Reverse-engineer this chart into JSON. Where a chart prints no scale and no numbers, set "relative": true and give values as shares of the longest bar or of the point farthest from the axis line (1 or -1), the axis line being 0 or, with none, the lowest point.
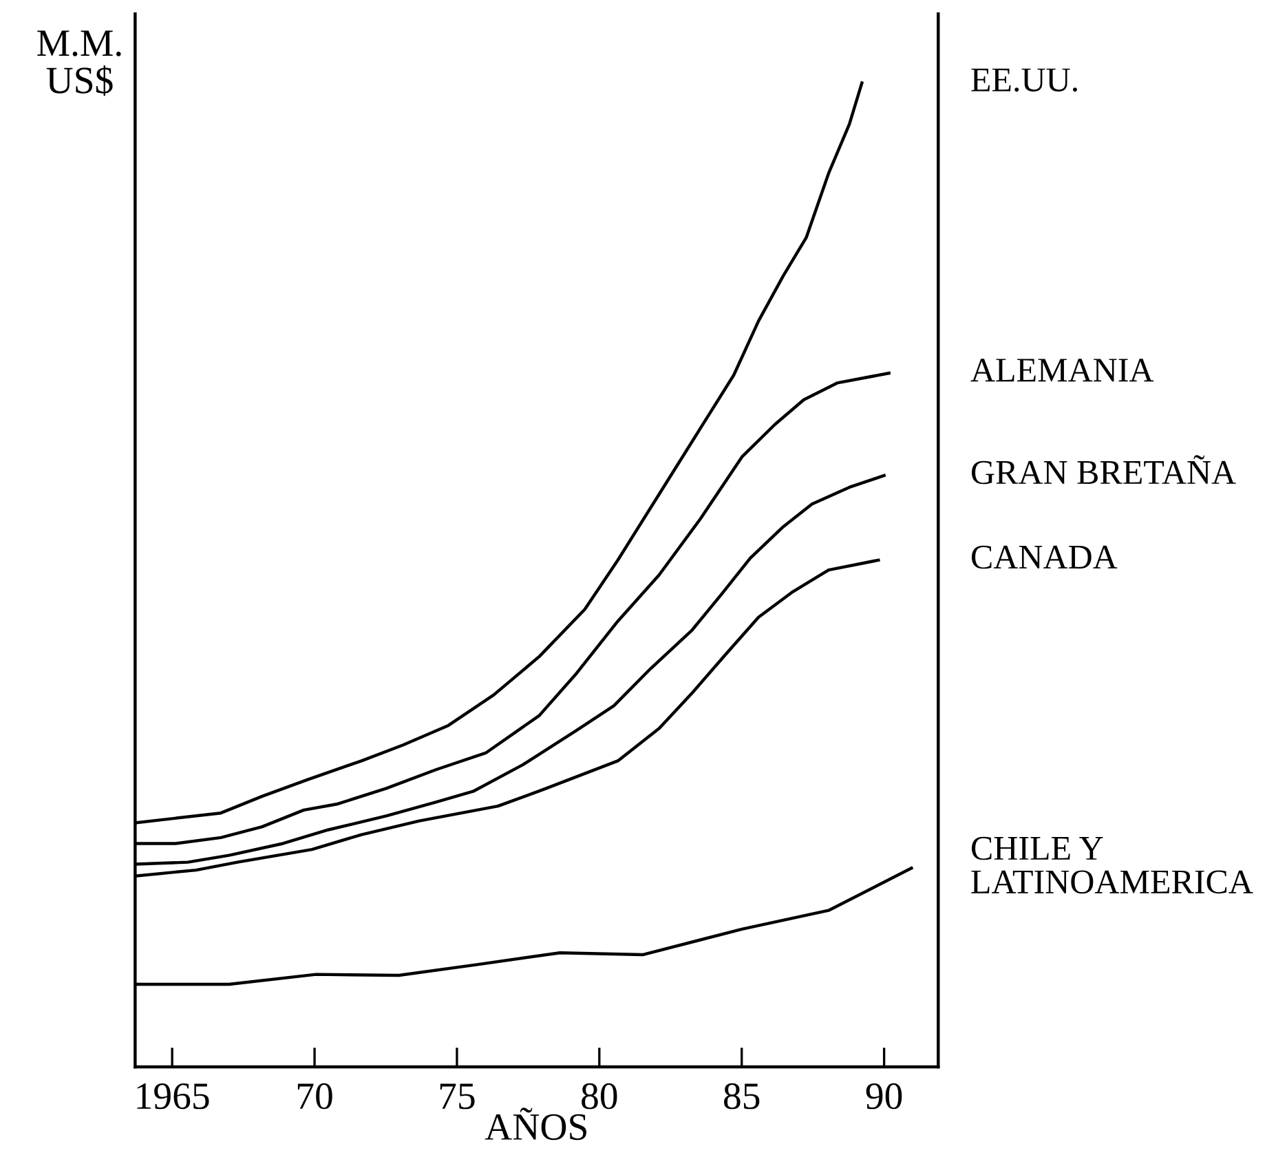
{
  "chart_data": {
    "type": "line",
    "relative": true,
    "ylabel": "M.M.\nUS$",
    "xlabel": "AÑOS",
    "xlim": [
      1963.7,
      1991.9
    ],
    "xticks": [
      1965,
      {
        "value": 1970,
        "label": "70"
      },
      {
        "value": 1975,
        "label": "75"
      },
      {
        "value": 1980,
        "label": "80"
      },
      {
        "value": 1985,
        "label": "85"
      },
      {
        "value": 1990,
        "label": "90"
      }
    ],
    "tick_labels": "x",
    "grid": false,
    "marker": "none",
    "line_style": "solid",
    "series": [
      {
        "name": "EE.UU.",
        "color": "#000000",
        "x": [
          1963.7,
          1966.71,
          1968.16,
          1969.76,
          1971.65,
          1973.1,
          1974.7,
          1976.29,
          1977.89,
          1979.49,
          1980.65,
          1982.1,
          1983.55,
          1984.72,
          1985.59,
          1986.46,
          1987.27,
          1988.05,
          1988.78,
          1989.22
        ],
        "values": [
          0.248,
          0.258,
          0.275,
          0.292,
          0.311,
          0.327,
          0.347,
          0.378,
          0.417,
          0.465,
          0.515,
          0.582,
          0.649,
          0.703,
          0.758,
          0.804,
          0.843,
          0.908,
          0.958,
          1.0
        ]
      },
      {
        "name": "ALEMANIA",
        "color": "#000000",
        "x": [
          1963.7,
          1965.12,
          1966.71,
          1968.16,
          1969.62,
          1970.78,
          1972.52,
          1974.26,
          1976.01,
          1977.89,
          1979.2,
          1980.65,
          1982.1,
          1983.55,
          1985.01,
          1986.17,
          1987.18,
          1988.35,
          1990.17
        ],
        "values": [
          0.227,
          0.227,
          0.233,
          0.244,
          0.261,
          0.267,
          0.283,
          0.302,
          0.319,
          0.357,
          0.4,
          0.453,
          0.5,
          0.557,
          0.62,
          0.653,
          0.678,
          0.695,
          0.705
        ]
      },
      {
        "name": "GRAN BRETAÑA",
        "color": "#000000",
        "x": [
          1963.7,
          1965.55,
          1967.0,
          1968.89,
          1970.49,
          1972.52,
          1974.26,
          1975.57,
          1977.31,
          1979.2,
          1980.51,
          1981.81,
          1983.26,
          1984.28,
          1985.3,
          1986.46,
          1987.47,
          1988.78,
          1990.0
        ],
        "values": [
          0.206,
          0.208,
          0.215,
          0.227,
          0.241,
          0.255,
          0.269,
          0.28,
          0.307,
          0.342,
          0.367,
          0.405,
          0.444,
          0.48,
          0.517,
          0.549,
          0.572,
          0.589,
          0.601
        ]
      },
      {
        "name": "CANADA",
        "color": "#000000",
        "x": [
          1963.7,
          1965.84,
          1967.29,
          1969.91,
          1971.65,
          1973.68,
          1976.44,
          1978.04,
          1980.65,
          1982.1,
          1983.26,
          1984.43,
          1985.59,
          1986.75,
          1988.05,
          1989.8
        ],
        "values": [
          0.194,
          0.2,
          0.208,
          0.221,
          0.236,
          0.25,
          0.265,
          0.282,
          0.311,
          0.344,
          0.38,
          0.419,
          0.457,
          0.482,
          0.505,
          0.515
        ]
      },
      {
        "name": "CHILE Y\nLATINOAMERICA",
        "color": "#000000",
        "x": [
          1963.7,
          1967.0,
          1970.05,
          1972.96,
          1975.71,
          1978.62,
          1981.52,
          1985.01,
          1988.05,
          1990.96
        ],
        "values": [
          0.084,
          0.084,
          0.094,
          0.093,
          0.104,
          0.116,
          0.114,
          0.14,
          0.159,
          0.202
        ]
      }
    ]
  }
}
